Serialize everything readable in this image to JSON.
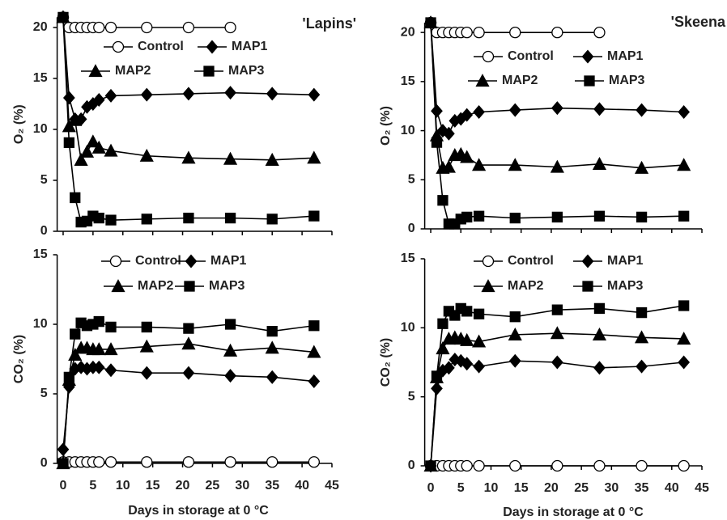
{
  "chart_data": [
    {
      "type": "line",
      "title": "'Lapins'",
      "ylabel": "O₂ (%)",
      "show_xtick_labels": false,
      "xlim": [
        -1,
        45
      ],
      "xticks": [
        0,
        5,
        10,
        15,
        20,
        25,
        30,
        35,
        40,
        45
      ],
      "ylim": [
        0,
        21
      ],
      "yticks": [
        0,
        5,
        10,
        15,
        20
      ],
      "series": [
        {
          "name": "Control",
          "marker": "circle",
          "color": "#000000",
          "x": [
            0,
            1,
            2,
            3,
            4,
            5,
            6,
            8,
            14,
            21,
            28
          ],
          "values": [
            21,
            20,
            20,
            20,
            20,
            20,
            20,
            20,
            20,
            20,
            20
          ]
        },
        {
          "name": "MAP1",
          "marker": "diamond",
          "color": "#000000",
          "x": [
            0,
            1,
            2,
            3,
            4,
            5,
            6,
            8,
            14,
            21,
            28,
            35,
            42
          ],
          "values": [
            21,
            13.1,
            11,
            11,
            12.2,
            12.5,
            12.9,
            13.3,
            13.4,
            13.5,
            13.6,
            13.5,
            13.4
          ]
        },
        {
          "name": "MAP2",
          "marker": "triangle",
          "color": "#000000",
          "x": [
            0,
            1,
            2,
            3,
            4,
            5,
            6,
            8,
            14,
            21,
            28,
            35,
            42
          ],
          "values": [
            21,
            10.3,
            10.9,
            7.0,
            7.8,
            8.8,
            8.2,
            7.9,
            7.4,
            7.2,
            7.1,
            7.0,
            7.2
          ]
        },
        {
          "name": "MAP3",
          "marker": "square",
          "color": "#000000",
          "x": [
            0,
            1,
            2,
            3,
            4,
            5,
            6,
            8,
            14,
            21,
            28,
            35,
            42
          ],
          "values": [
            21,
            8.7,
            3.3,
            0.9,
            1.0,
            1.5,
            1.3,
            1.1,
            1.2,
            1.3,
            1.3,
            1.2,
            1.5
          ]
        }
      ]
    },
    {
      "type": "line",
      "ylabel": "CO₂ (%)",
      "xlabel": "Days in storage at 0 °C",
      "show_xtick_labels": true,
      "xlim": [
        -1,
        45
      ],
      "xticks": [
        0,
        5,
        10,
        15,
        20,
        25,
        30,
        35,
        40,
        45
      ],
      "ylim": [
        0,
        15
      ],
      "yticks": [
        0,
        5,
        10,
        15
      ],
      "series": [
        {
          "name": "Control",
          "marker": "circle",
          "color": "#000000",
          "x": [
            0,
            1,
            2,
            3,
            4,
            5,
            6,
            8,
            14,
            21,
            28,
            35,
            42
          ],
          "values": [
            0.1,
            0.1,
            0.1,
            0.1,
            0.1,
            0.1,
            0.1,
            0.1,
            0.1,
            0.1,
            0.1,
            0.1,
            0.1
          ]
        },
        {
          "name": "MAP1",
          "marker": "diamond",
          "color": "#000000",
          "x": [
            0,
            1,
            2,
            3,
            4,
            5,
            6,
            8,
            14,
            21,
            28,
            35,
            42
          ],
          "values": [
            1.0,
            5.5,
            6.8,
            6.9,
            6.8,
            6.9,
            6.9,
            6.7,
            6.5,
            6.5,
            6.3,
            6.2,
            5.9
          ]
        },
        {
          "name": "MAP2",
          "marker": "triangle",
          "color": "#000000",
          "x": [
            0,
            1,
            2,
            3,
            4,
            5,
            6,
            8,
            14,
            21,
            28,
            35,
            42
          ],
          "values": [
            0,
            6.0,
            7.8,
            8.3,
            8.3,
            8.2,
            8.2,
            8.2,
            8.4,
            8.6,
            8.1,
            8.3,
            8.0
          ]
        },
        {
          "name": "MAP3",
          "marker": "square",
          "color": "#000000",
          "x": [
            0,
            1,
            2,
            3,
            4,
            5,
            6,
            8,
            14,
            21,
            28,
            35,
            42
          ],
          "values": [
            0,
            6.2,
            9.3,
            10.1,
            9.9,
            10.0,
            10.2,
            9.8,
            9.8,
            9.7,
            10.0,
            9.5,
            9.9
          ]
        }
      ]
    },
    {
      "type": "line",
      "title": "'Skeena",
      "ylabel": "O₂ (%)",
      "show_xtick_labels": false,
      "xlim": [
        -1,
        45
      ],
      "xticks": [
        0,
        5,
        10,
        15,
        20,
        25,
        30,
        35,
        40,
        45
      ],
      "ylim": [
        0,
        21
      ],
      "yticks": [
        0,
        5,
        10,
        15,
        20
      ],
      "series": [
        {
          "name": "Control",
          "marker": "circle",
          "color": "#000000",
          "x": [
            0,
            1,
            2,
            3,
            4,
            5,
            6,
            8,
            14,
            21,
            28
          ],
          "values": [
            21,
            20,
            20,
            20,
            20,
            20,
            20,
            20,
            20,
            20,
            20
          ]
        },
        {
          "name": "MAP1",
          "marker": "diamond",
          "color": "#000000",
          "x": [
            0,
            1,
            2,
            3,
            4,
            5,
            6,
            8,
            14,
            21,
            28,
            35,
            42
          ],
          "values": [
            21,
            12.0,
            10.0,
            9.7,
            11.0,
            11.2,
            11.6,
            11.9,
            12.1,
            12.3,
            12.2,
            12.1,
            11.9
          ]
        },
        {
          "name": "MAP2",
          "marker": "triangle",
          "color": "#000000",
          "x": [
            0,
            1,
            2,
            3,
            4,
            5,
            6,
            8,
            14,
            21,
            28,
            35,
            42
          ],
          "values": [
            21,
            9.5,
            6.2,
            6.3,
            7.5,
            7.6,
            7.3,
            6.5,
            6.5,
            6.3,
            6.6,
            6.2,
            6.5
          ]
        },
        {
          "name": "MAP3",
          "marker": "square",
          "color": "#000000",
          "x": [
            0,
            1,
            2,
            3,
            4,
            5,
            6,
            8,
            14,
            21,
            28,
            35,
            42
          ],
          "values": [
            21,
            8.8,
            2.9,
            0.5,
            0.5,
            1.0,
            1.2,
            1.3,
            1.1,
            1.2,
            1.3,
            1.2,
            1.3
          ]
        }
      ]
    },
    {
      "type": "line",
      "ylabel": "CO₂ (%)",
      "xlabel": "Days in storage at 0 °C",
      "show_xtick_labels": true,
      "xlim": [
        -1,
        45
      ],
      "xticks": [
        0,
        5,
        10,
        15,
        20,
        25,
        30,
        35,
        40,
        45
      ],
      "ylim": [
        0,
        15
      ],
      "yticks": [
        0,
        5,
        10,
        15
      ],
      "series": [
        {
          "name": "Control",
          "marker": "circle",
          "color": "#000000",
          "x": [
            0,
            1,
            2,
            3,
            4,
            5,
            6,
            8,
            14,
            21,
            28,
            35,
            42
          ],
          "values": [
            0,
            0,
            0,
            0,
            0,
            0,
            0,
            0,
            0,
            0,
            0,
            0,
            0
          ]
        },
        {
          "name": "MAP1",
          "marker": "diamond",
          "color": "#000000",
          "x": [
            0,
            1,
            2,
            3,
            4,
            5,
            6,
            8,
            14,
            21,
            28,
            35,
            42
          ],
          "values": [
            0,
            5.6,
            6.9,
            7.1,
            7.7,
            7.6,
            7.4,
            7.2,
            7.6,
            7.5,
            7.1,
            7.2,
            7.5
          ]
        },
        {
          "name": "MAP2",
          "marker": "triangle",
          "color": "#000000",
          "x": [
            0,
            1,
            2,
            3,
            4,
            5,
            6,
            8,
            14,
            21,
            28,
            35,
            42
          ],
          "values": [
            0,
            6.4,
            8.5,
            9.2,
            9.3,
            9.2,
            9.1,
            9.0,
            9.5,
            9.6,
            9.5,
            9.3,
            9.2
          ]
        },
        {
          "name": "MAP3",
          "marker": "square",
          "color": "#000000",
          "x": [
            0,
            1,
            2,
            3,
            4,
            5,
            6,
            8,
            14,
            21,
            28,
            35,
            42
          ],
          "values": [
            0,
            6.5,
            10.3,
            11.2,
            10.9,
            11.4,
            11.2,
            11.0,
            10.8,
            11.3,
            11.4,
            11.1,
            11.6
          ]
        }
      ]
    }
  ]
}
